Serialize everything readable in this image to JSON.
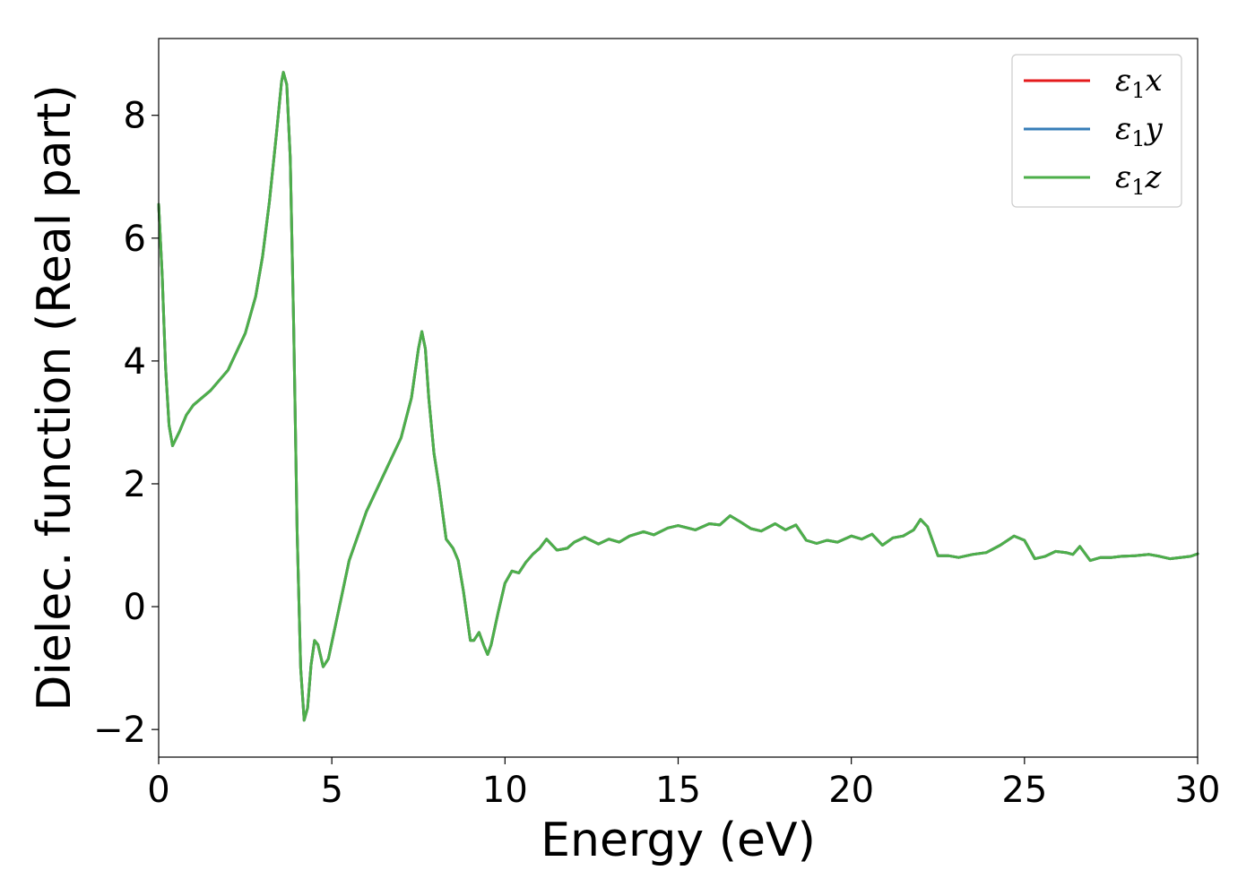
{
  "chart_data": {
    "type": "line",
    "xlabel": "Energy (eV)",
    "ylabel": "Dielec. function (Real part)",
    "xlim": [
      0,
      30
    ],
    "ylim": [
      -2.45,
      9.25
    ],
    "xticks": [
      0,
      5,
      10,
      15,
      20,
      25,
      30
    ],
    "yticks": [
      -2,
      0,
      2,
      4,
      6,
      8
    ],
    "xtick_labels": [
      "0",
      "5",
      "10",
      "15",
      "20",
      "25",
      "30"
    ],
    "ytick_labels": [
      "−2",
      "0",
      "2",
      "4",
      "6",
      "8"
    ],
    "grid": false,
    "legend_position": "top-right",
    "series": [
      {
        "name": "ε1x",
        "name_base": "ε",
        "name_sub": "1",
        "name_suffix": "x",
        "color": "#e41a1c"
      },
      {
        "name": "ε1y",
        "name_base": "ε",
        "name_sub": "1",
        "name_suffix": "y",
        "color": "#377eb8"
      },
      {
        "name": "ε1z",
        "name_base": "ε",
        "name_sub": "1",
        "name_suffix": "z",
        "color": "#4daf4a"
      }
    ],
    "x": [
      0,
      0.1,
      0.2,
      0.3,
      0.4,
      0.6,
      0.8,
      1.0,
      1.5,
      2.0,
      2.5,
      2.8,
      3.0,
      3.2,
      3.4,
      3.55,
      3.6,
      3.7,
      3.8,
      3.9,
      4.0,
      4.1,
      4.2,
      4.3,
      4.4,
      4.5,
      4.6,
      4.75,
      4.9,
      5.2,
      5.5,
      6.0,
      6.5,
      7.0,
      7.3,
      7.5,
      7.6,
      7.7,
      7.8,
      7.95,
      8.1,
      8.3,
      8.5,
      8.65,
      8.8,
      9.0,
      9.1,
      9.25,
      9.4,
      9.5,
      9.6,
      9.8,
      10.0,
      10.2,
      10.4,
      10.6,
      10.8,
      11.0,
      11.2,
      11.5,
      11.8,
      12.0,
      12.3,
      12.7,
      13.0,
      13.3,
      13.6,
      14.0,
      14.3,
      14.7,
      15.0,
      15.5,
      15.9,
      16.2,
      16.5,
      16.8,
      17.1,
      17.4,
      17.8,
      18.1,
      18.4,
      18.7,
      19.0,
      19.3,
      19.6,
      20.0,
      20.3,
      20.6,
      20.9,
      21.2,
      21.5,
      21.8,
      22.0,
      22.2,
      22.5,
      22.8,
      23.1,
      23.5,
      23.9,
      24.3,
      24.7,
      25.0,
      25.3,
      25.6,
      25.9,
      26.2,
      26.4,
      26.6,
      26.9,
      27.2,
      27.5,
      27.8,
      28.2,
      28.6,
      28.9,
      29.2,
      29.5,
      29.8,
      30.0
    ],
    "y": [
      6.55,
      5.4,
      3.9,
      2.95,
      2.62,
      2.85,
      3.12,
      3.28,
      3.52,
      3.85,
      4.45,
      5.05,
      5.7,
      6.6,
      7.7,
      8.55,
      8.7,
      8.5,
      7.3,
      4.5,
      1.2,
      -1.0,
      -1.85,
      -1.65,
      -0.95,
      -0.55,
      -0.62,
      -0.98,
      -0.85,
      -0.05,
      0.75,
      1.55,
      2.15,
      2.75,
      3.4,
      4.2,
      4.48,
      4.2,
      3.4,
      2.5,
      1.95,
      1.1,
      0.95,
      0.75,
      0.25,
      -0.55,
      -0.55,
      -0.42,
      -0.65,
      -0.78,
      -0.62,
      -0.1,
      0.38,
      0.58,
      0.55,
      0.72,
      0.85,
      0.95,
      1.1,
      0.92,
      0.95,
      1.05,
      1.13,
      1.02,
      1.1,
      1.05,
      1.15,
      1.22,
      1.17,
      1.28,
      1.32,
      1.25,
      1.35,
      1.33,
      1.48,
      1.38,
      1.27,
      1.23,
      1.35,
      1.25,
      1.33,
      1.08,
      1.03,
      1.08,
      1.05,
      1.15,
      1.1,
      1.18,
      1.0,
      1.12,
      1.15,
      1.25,
      1.42,
      1.3,
      0.83,
      0.83,
      0.8,
      0.85,
      0.88,
      1.0,
      1.15,
      1.08,
      0.78,
      0.82,
      0.9,
      0.88,
      0.85,
      0.98,
      0.75,
      0.8,
      0.8,
      0.82,
      0.83,
      0.85,
      0.82,
      0.78,
      0.8,
      0.82,
      0.86
    ]
  }
}
